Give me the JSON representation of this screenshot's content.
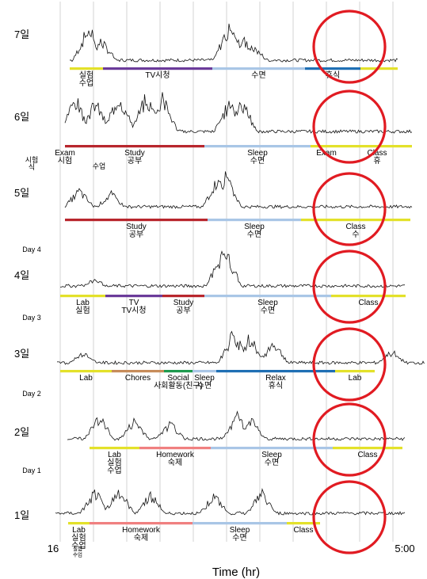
{
  "chart_data": {
    "type": "line",
    "title": "",
    "xlabel": "Time (hr)",
    "x_tick_labels": [
      "16",
      "5:00"
    ],
    "x_tick_sublabel": "실험\n수업",
    "highlight_color": "#e11b22",
    "days": [
      {
        "label": "7일",
        "segments": [
          {
            "label": "실험\n수업",
            "color": "#e3e12a"
          },
          {
            "label": "TV시청",
            "color": "#6b3b9a"
          },
          {
            "label": "수면",
            "color": "#a9c6e6"
          },
          {
            "label": "휴식",
            "color": "#1f6fb4"
          },
          {
            "label": "",
            "color": "#e3e12a"
          }
        ]
      },
      {
        "label": "6일",
        "segments": [
          {
            "label": "Exam\n시험",
            "color": "#b8262d"
          },
          {
            "label": "Study\n공부",
            "color": "#b8262d"
          },
          {
            "label": "Sleep\n수면",
            "color": "#a9c6e6"
          },
          {
            "label": "Exam",
            "color": "#e3e12a"
          },
          {
            "label": "Class\n휴",
            "color": "#e3e12a"
          }
        ]
      },
      {
        "label": "5일",
        "segments": [
          {
            "label": "Study\n공부",
            "color": "#b8262d"
          },
          {
            "label": "Sleep\n수면",
            "color": "#a9c6e6"
          },
          {
            "label": "Class\n수",
            "color": "#e3e12a"
          }
        ],
        "top_labels": [
          "시험\n식",
          "수업"
        ]
      },
      {
        "label": "4일",
        "segments": [
          {
            "label": "Lab\n실험",
            "color": "#e3e12a"
          },
          {
            "label": "TV\nTV시청",
            "color": "#6b3b9a"
          },
          {
            "label": "Study\n공부",
            "color": "#b8262d"
          },
          {
            "label": "Sleep\n수면",
            "color": "#a9c6e6"
          },
          {
            "label": "Class",
            "color": "#e3e12a"
          }
        ],
        "top_labels": [
          "Day 4"
        ]
      },
      {
        "label": "3일",
        "segments": [
          {
            "label": "Lab",
            "color": "#e3e12a"
          },
          {
            "label": "Chores",
            "color": "#c78c5a"
          },
          {
            "label": "Social\n사회활동(친구)",
            "color": "#1e9a4f"
          },
          {
            "label": "Sleep\n수면",
            "color": "#a9c6e6"
          },
          {
            "label": "Relax\n휴식",
            "color": "#1f6fb4"
          },
          {
            "label": "Lab",
            "color": "#e3e12a"
          }
        ],
        "top_labels": [
          "Day 3"
        ]
      },
      {
        "label": "2일",
        "segments": [
          {
            "label": "Lab\n실험\n수업",
            "color": "#e3e12a"
          },
          {
            "label": "Homework\n숙제",
            "color": "#f08080"
          },
          {
            "label": "Sleep\n수면",
            "color": "#a9c6e6"
          },
          {
            "label": "Class",
            "color": "#e3e12a"
          }
        ],
        "top_labels": [
          "Day 2"
        ]
      },
      {
        "label": "1일",
        "segments": [
          {
            "label": "Lab\n실험\n수업",
            "color": "#e3e12a"
          },
          {
            "label": "Homework\n숙제",
            "color": "#f08080"
          },
          {
            "label": "Sleep\n수면",
            "color": "#a9c6e6"
          },
          {
            "label": "Class",
            "color": "#e3e12a"
          }
        ],
        "top_labels": [
          "Day 1"
        ]
      }
    ]
  }
}
